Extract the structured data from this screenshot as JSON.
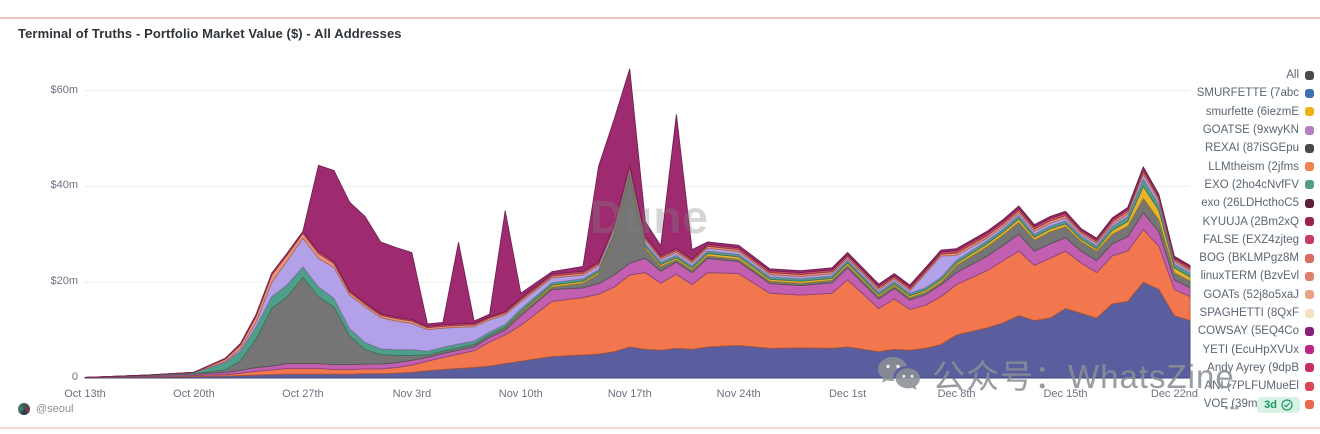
{
  "header": {
    "title": "Terminal of Truths - Portfolio Market Value ($) - All Addresses"
  },
  "y_axis": {
    "labels": [
      "$60m",
      "$40m",
      "$20m",
      "0"
    ],
    "values": [
      60,
      40,
      20,
      0
    ]
  },
  "x_axis": {
    "labels": [
      "Oct 13th",
      "Oct 20th",
      "Oct 27th",
      "Nov 3rd",
      "Nov 10th",
      "Nov 17th",
      "Nov 24th",
      "Dec 1st",
      "Dec 8th",
      "Dec 15th",
      "Dec 22nd"
    ],
    "day_offsets": [
      0,
      7,
      14,
      21,
      28,
      35,
      42,
      49,
      56,
      63,
      70
    ]
  },
  "legend": {
    "items": [
      {
        "label": "All",
        "color": "#4a4a4a"
      },
      {
        "label": "SMURFETTE (7abc",
        "color": "#3e6fb0"
      },
      {
        "label": "smurfette (6iezmE",
        "color": "#efb118"
      },
      {
        "label": "GOATSE (9xwyKN",
        "color": "#b57fc6"
      },
      {
        "label": "REXAI (87iSGEpu",
        "color": "#4a4a4a"
      },
      {
        "label": "LLMtheism (2jfms",
        "color": "#ee8452"
      },
      {
        "label": "EXO (2ho4cNvfFV",
        "color": "#4f9e8a"
      },
      {
        "label": "exo (26LDHcthoC5",
        "color": "#5c1f3c"
      },
      {
        "label": "KYUUJA (2Bm2xQ",
        "color": "#99254f"
      },
      {
        "label": "FALSE (EXZ4zjteg",
        "color": "#c93a60"
      },
      {
        "label": "BOG (BKLMPgz8M",
        "color": "#da6a62"
      },
      {
        "label": "linuxTERM (BzvEvl",
        "color": "#df7f6e"
      },
      {
        "label": "GOATs (52j8o5xaJ",
        "color": "#eba186"
      },
      {
        "label": "SPAGHETTI (8QxF",
        "color": "#f3e2c1"
      },
      {
        "label": "COWSAY (5EQ4Co",
        "color": "#8a1f79"
      },
      {
        "label": "YETI (EcuHpXVUx",
        "color": "#bc2585"
      },
      {
        "label": "Andy Ayrey (9dpB",
        "color": "#c73060"
      },
      {
        "label": "ANI (7PLFUMueEl",
        "color": "#d94556"
      },
      {
        "label": "VOE (39mp4M95u",
        "color": "#e8694d"
      }
    ]
  },
  "footer": {
    "author_handle": "@seoul",
    "more_label": "•••",
    "time_badge_label": "3d"
  },
  "watermarks": {
    "dune": "Dune",
    "wechat": "公众号：WhatsZine"
  },
  "chart_data": {
    "type": "area",
    "stacked": true,
    "title": "Terminal of Truths - Portfolio Market Value ($) - All Addresses",
    "xlabel": "",
    "ylabel": "Portfolio Market Value ($)",
    "ylim": [
      0,
      65
    ],
    "unit": "$m",
    "grid": true,
    "legend_position": "right",
    "x": [
      "Oct 13",
      "Oct 17",
      "Oct 20",
      "Oct 22",
      "Oct 23",
      "Oct 24",
      "Oct 25",
      "Oct 26",
      "Oct 27",
      "Oct 28",
      "Oct 29",
      "Oct 30",
      "Oct 31",
      "Nov 1",
      "Nov 2",
      "Nov 3",
      "Nov 4",
      "Nov 5",
      "Nov 6",
      "Nov 7",
      "Nov 8",
      "Nov 9",
      "Nov 10",
      "Nov 12",
      "Nov 14",
      "Nov 15",
      "Nov 16",
      "Nov 17",
      "Nov 18",
      "Nov 19",
      "Nov 20",
      "Nov 21",
      "Nov 22",
      "Nov 24",
      "Nov 26",
      "Nov 28",
      "Nov 30",
      "Dec 1",
      "Dec 3",
      "Dec 4",
      "Dec 5",
      "Dec 6",
      "Dec 7",
      "Dec 8",
      "Dec 10",
      "Dec 11",
      "Dec 12",
      "Dec 13",
      "Dec 14",
      "Dec 15",
      "Dec 16",
      "Dec 17",
      "Dec 18",
      "Dec 19",
      "Dec 20",
      "Dec 21",
      "Dec 22",
      "Dec 23"
    ],
    "day_offsets": [
      0,
      4,
      7,
      9,
      10,
      11,
      12,
      13,
      14,
      15,
      16,
      17,
      18,
      19,
      20,
      21,
      22,
      23,
      24,
      25,
      26,
      27,
      28,
      30,
      32,
      33,
      34,
      35,
      36,
      37,
      38,
      39,
      40,
      42,
      44,
      46,
      48,
      49,
      51,
      52,
      53,
      54,
      55,
      56,
      58,
      59,
      60,
      61,
      62,
      63,
      64,
      65,
      66,
      67,
      68,
      69,
      70,
      71
    ],
    "series": [
      {
        "name": "SMURFETTE (7abc",
        "color": "#5a5d9e",
        "values": [
          0.1,
          0.2,
          0.3,
          0.4,
          0.5,
          0.6,
          0.7,
          0.8,
          0.8,
          0.8,
          0.8,
          0.8,
          0.9,
          0.9,
          1.0,
          1.2,
          1.5,
          1.8,
          2.0,
          2.2,
          2.5,
          3.0,
          3.5,
          4.5,
          4.8,
          5.0,
          5.5,
          6.5,
          6.0,
          5.8,
          6.2,
          6.0,
          6.5,
          6.8,
          6.2,
          6.3,
          6.2,
          6.5,
          5.5,
          6.0,
          5.8,
          6.2,
          7.0,
          9.0,
          10.5,
          11.5,
          13.0,
          12.0,
          12.5,
          14.5,
          13.5,
          12.5,
          15.5,
          16.0,
          20.0,
          18.5,
          13.0,
          12.0
        ]
      },
      {
        "name": "LLMtheism (2jfms",
        "color": "#f3774e",
        "values": [
          0,
          0.1,
          0.2,
          0.3,
          0.5,
          0.8,
          1.0,
          1.2,
          1.2,
          1.2,
          1.0,
          1.0,
          1.0,
          1.0,
          1.2,
          1.5,
          2.0,
          2.5,
          3.0,
          3.5,
          5.0,
          6.0,
          7.5,
          11.5,
          12.0,
          12.5,
          13.5,
          15.0,
          16.0,
          14.0,
          15.5,
          13.5,
          15.5,
          15.0,
          11.5,
          11.0,
          11.5,
          14.0,
          9.0,
          10.5,
          8.5,
          9.0,
          10.0,
          10.5,
          12.0,
          13.0,
          13.5,
          11.5,
          12.5,
          12.0,
          10.5,
          9.5,
          10.0,
          10.5,
          11.0,
          9.0,
          5.5,
          5.0
        ]
      },
      {
        "name": "YETI (EcuHpXVUx",
        "color": "#c25fb0",
        "values": [
          0,
          0.2,
          0.3,
          0.5,
          0.6,
          0.8,
          0.8,
          1.0,
          1.0,
          1.0,
          1.0,
          1.0,
          1.0,
          1.0,
          1.0,
          1.0,
          0.8,
          0.8,
          0.8,
          0.8,
          1.0,
          1.0,
          2.0,
          2.5,
          2.0,
          2.2,
          2.5,
          2.5,
          3.0,
          2.5,
          2.5,
          2.5,
          3.0,
          2.5,
          2.0,
          2.0,
          2.2,
          2.5,
          2.0,
          2.2,
          2.0,
          2.2,
          2.5,
          2.5,
          3.0,
          3.2,
          3.5,
          3.0,
          3.0,
          2.8,
          2.5,
          2.5,
          2.5,
          3.0,
          3.5,
          3.0,
          2.0,
          1.8
        ]
      },
      {
        "name": "REXAI (87iSGEpu",
        "color": "#757575",
        "values": [
          0,
          0,
          0.1,
          0.5,
          2.0,
          6.0,
          12.0,
          14.0,
          18.0,
          14.0,
          12.0,
          6.0,
          3.0,
          2.0,
          1.5,
          1.0,
          0.5,
          0.5,
          0.5,
          0.5,
          0.5,
          0.5,
          0.5,
          0.5,
          1.0,
          2.0,
          8.0,
          18.0,
          2.0,
          1.0,
          0.5,
          0.5,
          0.5,
          0.5,
          0.5,
          0.5,
          0.5,
          0.5,
          0.5,
          0.5,
          0.5,
          0.5,
          0.5,
          1.5,
          2.0,
          2.2,
          2.5,
          2.3,
          2.5,
          2.3,
          2.0,
          2.0,
          2.0,
          2.2,
          3.0,
          2.5,
          1.5,
          1.5
        ]
      },
      {
        "name": "smurfette (6iezmE",
        "color": "#eab32c",
        "values": [
          0,
          0,
          0,
          0,
          0,
          0,
          0,
          0,
          0,
          0,
          0,
          0,
          0,
          0,
          0,
          0,
          0,
          0,
          0,
          0,
          0,
          0.1,
          0.3,
          0.4,
          0.4,
          0.4,
          0.4,
          0.4,
          0.5,
          0.4,
          0.4,
          0.4,
          0.5,
          0.5,
          0.4,
          0.4,
          0.4,
          0.5,
          0.4,
          0.4,
          0.4,
          0.4,
          0.5,
          0.5,
          0.6,
          0.6,
          0.7,
          0.6,
          0.6,
          0.6,
          0.5,
          0.5,
          0.8,
          1.0,
          2.5,
          2.0,
          1.0,
          0.8
        ]
      },
      {
        "name": "EXO (2ho4cNvfFV",
        "color": "#4f9e8a",
        "values": [
          0,
          0.1,
          0.2,
          1.5,
          2.0,
          2.5,
          2.5,
          2.5,
          2.2,
          2.0,
          1.8,
          1.5,
          1.5,
          1.2,
          1.2,
          1.2,
          0.8,
          0.8,
          0.8,
          0.7,
          0.6,
          0.6,
          0.6,
          0.5,
          0.5,
          0.5,
          0.5,
          0.5,
          0.5,
          0.5,
          0.5,
          0.5,
          0.5,
          0.5,
          0.5,
          0.5,
          0.5,
          0.5,
          0.5,
          0.5,
          0.5,
          0.5,
          0.5,
          0.6,
          0.6,
          0.6,
          0.7,
          0.6,
          0.6,
          0.6,
          0.6,
          0.6,
          0.8,
          1.0,
          1.5,
          1.2,
          0.8,
          0.8
        ]
      },
      {
        "name": "GOATSE (9xwyKN",
        "color": "#b2a0e8",
        "values": [
          0,
          0,
          0,
          0.2,
          0.5,
          1.0,
          3.0,
          5.0,
          6.0,
          6.0,
          6.5,
          7.0,
          7.5,
          6.5,
          6.0,
          5.5,
          4.5,
          4.0,
          3.5,
          3.0,
          2.5,
          2.0,
          1.5,
          1.0,
          0.8,
          0.8,
          0.8,
          0.8,
          0.8,
          0.6,
          0.6,
          0.6,
          0.6,
          0.6,
          0.5,
          0.5,
          0.5,
          0.5,
          0.5,
          0.5,
          0.5,
          3.0,
          4.5,
          1.0,
          0.6,
          0.6,
          0.6,
          0.6,
          0.6,
          0.6,
          0.5,
          0.5,
          0.5,
          0.6,
          1.0,
          0.8,
          0.5,
          0.5
        ]
      },
      {
        "name": "GOATs (52j8o5xaJ",
        "color": "#ec9477",
        "values": [
          0,
          0,
          0.1,
          0.5,
          0.8,
          1.2,
          1.5,
          1.2,
          1.0,
          1.0,
          0.8,
          0.6,
          0.5,
          0.5,
          0.5,
          0.5,
          0.4,
          0.4,
          0.4,
          0.4,
          0.4,
          0.4,
          0.4,
          0.4,
          0.4,
          0.4,
          0.4,
          0.4,
          0.4,
          0.4,
          0.4,
          0.4,
          0.4,
          0.4,
          0.4,
          0.4,
          0.4,
          0.4,
          0.4,
          0.4,
          0.4,
          0.4,
          0.4,
          0.5,
          0.5,
          0.5,
          0.5,
          0.5,
          0.5,
          0.5,
          0.4,
          0.4,
          0.5,
          0.5,
          0.6,
          0.5,
          0.4,
          0.4
        ]
      },
      {
        "name": "FALSE (EXZ4zjteg",
        "color": "#d04b66",
        "values": [
          0,
          0,
          0,
          0.2,
          0.3,
          0.4,
          0.4,
          0.4,
          0.4,
          0.4,
          0.4,
          0.3,
          0.3,
          0.3,
          0.3,
          0.3,
          0.3,
          0.3,
          0.3,
          0.3,
          0.3,
          0.3,
          0.4,
          0.4,
          0.4,
          0.4,
          0.4,
          0.4,
          0.4,
          0.4,
          0.4,
          0.4,
          0.4,
          0.4,
          0.4,
          0.4,
          0.4,
          0.4,
          0.4,
          0.4,
          0.4,
          0.4,
          0.4,
          0.5,
          0.5,
          0.5,
          0.5,
          0.5,
          0.5,
          0.5,
          0.4,
          0.4,
          0.5,
          0.5,
          0.6,
          0.5,
          0.4,
          0.4
        ]
      },
      {
        "name": "COWSAY (5EQ4Co",
        "color": "#9e2b70",
        "values": [
          0,
          0,
          0,
          0,
          0,
          0,
          0,
          0,
          0,
          18.0,
          19.0,
          18.5,
          18.0,
          15.0,
          14.5,
          14.0,
          0.5,
          0.5,
          17.0,
          0.5,
          0.5,
          21.0,
          1.0,
          0.5,
          1.0,
          20.0,
          22.0,
          20.0,
          3.0,
          2.0,
          28.0,
          2.0,
          0.5,
          0.5,
          0.4,
          0.4,
          0.4,
          0.4,
          0.4,
          0.4,
          0.4,
          0.4,
          0.4,
          0.4,
          0.4,
          0.4,
          0.4,
          0.4,
          0.4,
          0.4,
          0.3,
          0.3,
          0.3,
          0.3,
          0.4,
          0.3,
          0.3,
          0.3
        ]
      }
    ]
  }
}
